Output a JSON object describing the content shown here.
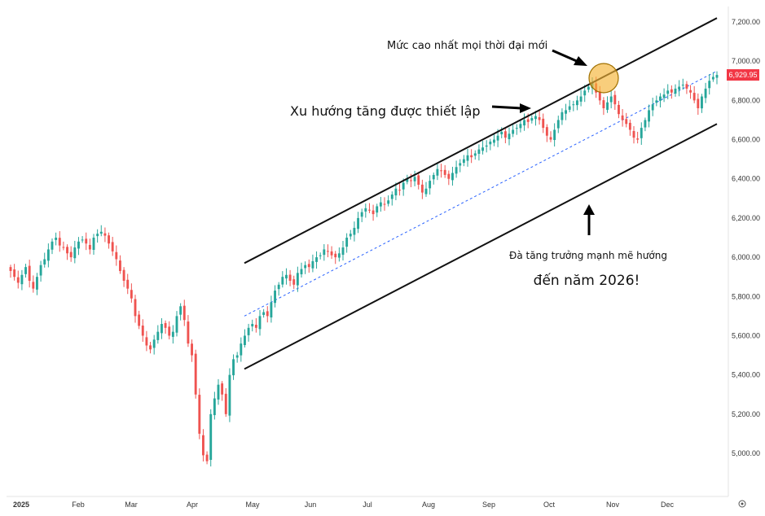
{
  "chart_data": {
    "type": "candlestick",
    "title": "",
    "ylabel": "",
    "xlabel": "",
    "ylim": [
      4800,
      7300
    ],
    "y_ticks": [
      5000,
      5200,
      5400,
      5600,
      5800,
      6000,
      6200,
      6400,
      6600,
      6800,
      7000,
      7200
    ],
    "y_tick_labels": [
      "5,000.00",
      "5,200.00",
      "5,400.00",
      "5,600.00",
      "5,800.00",
      "6,000.00",
      "6,200.00",
      "6,400.00",
      "6,600.00",
      "6,800.00",
      "7,000.00",
      "7,200.00"
    ],
    "x_ticks": [
      "2025",
      "Feb",
      "Mar",
      "Apr",
      "May",
      "Jun",
      "Jul",
      "Aug",
      "Sep",
      "Oct",
      "Nov",
      "Dec"
    ],
    "last_price": "6,929.95",
    "colors": {
      "up": "#26a69a",
      "down": "#ef5350",
      "price_label": "#f23645",
      "channel": "#111111",
      "midline": "#2962ff",
      "highlight": "#f5b335",
      "note_text": "#3a5a1a"
    },
    "closes": [
      5930,
      5900,
      5870,
      5910,
      5950,
      5880,
      5840,
      5900,
      5960,
      5990,
      6040,
      6080,
      6100,
      6060,
      6050,
      6020,
      6000,
      6050,
      6080,
      6090,
      6070,
      6040,
      6100,
      6120,
      6130,
      6110,
      6070,
      6030,
      5990,
      5930,
      5880,
      5840,
      5790,
      5700,
      5650,
      5600,
      5550,
      5530,
      5580,
      5620,
      5660,
      5640,
      5600,
      5620,
      5700,
      5750,
      5680,
      5560,
      5500,
      5300,
      5100,
      4990,
      4960,
      5200,
      5280,
      5350,
      5300,
      5200,
      5400,
      5480,
      5500,
      5560,
      5600,
      5640,
      5660,
      5640,
      5700,
      5720,
      5700,
      5770,
      5830,
      5860,
      5900,
      5910,
      5880,
      5860,
      5920,
      5940,
      5960,
      5950,
      5980,
      6000,
      6010,
      6040,
      6030,
      6010,
      6000,
      6020,
      6050,
      6100,
      6120,
      6150,
      6200,
      6230,
      6250,
      6240,
      6220,
      6260,
      6280,
      6270,
      6290,
      6320,
      6350,
      6340,
      6380,
      6400,
      6390,
      6410,
      6370,
      6330,
      6350,
      6390,
      6420,
      6450,
      6440,
      6420,
      6400,
      6430,
      6460,
      6480,
      6500,
      6520,
      6510,
      6530,
      6550,
      6560,
      6570,
      6590,
      6600,
      6620,
      6640,
      6610,
      6630,
      6650,
      6660,
      6680,
      6700,
      6690,
      6710,
      6720,
      6700,
      6660,
      6620,
      6600,
      6650,
      6700,
      6740,
      6750,
      6770,
      6780,
      6800,
      6820,
      6850,
      6870,
      6890,
      6840,
      6800,
      6760,
      6790,
      6820,
      6780,
      6730,
      6700,
      6680,
      6650,
      6610,
      6600,
      6660,
      6700,
      6750,
      6780,
      6800,
      6820,
      6830,
      6850,
      6840,
      6860,
      6870,
      6880,
      6860,
      6840,
      6800,
      6760,
      6820,
      6860,
      6900,
      6920,
      6929.95
    ],
    "channel_upper": [
      {
        "date": "May",
        "value": 5970
      },
      {
        "date": "Dec-end",
        "value": 7220
      }
    ],
    "channel_lower": [
      {
        "date": "May",
        "value": 5430
      },
      {
        "date": "Dec-end",
        "value": 6680
      }
    ],
    "midline": [
      {
        "date": "May",
        "value": 5700
      },
      {
        "date": "Dec-end",
        "value": 6950
      }
    ],
    "annotations": {
      "ath": "Mức cao nhất mọi thời đại mới",
      "trend": "Xu hướng tăng được thiết lập",
      "note_line1": "Đà tăng trưởng mạnh mẽ hướng",
      "note_line2": "đến năm 2026!"
    }
  }
}
